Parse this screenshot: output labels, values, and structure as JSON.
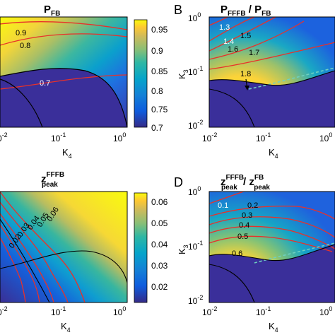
{
  "figure": {
    "colormap": "parula",
    "colors": {
      "background": "#ffffff",
      "axis": "#000000",
      "contour": "#e8312a",
      "boundary": "#000000",
      "dashed_boundary": "#6fd0c0",
      "label_highlight": "#ffffff"
    }
  },
  "chart_data": [
    {
      "panel": "A",
      "type": "heatmap",
      "panel_label": "",
      "title_main": "P",
      "title_sub": "FB",
      "title_sep": "",
      "title2_main": "",
      "title2_sub": "",
      "title2_sup": "",
      "xlabel_main": "K",
      "xlabel_sub": "4",
      "ylabel_main": "",
      "ylabel_sub": "",
      "x_ticks": [
        "10-2",
        "10-1",
        "100"
      ],
      "y_ticks": [],
      "x_log": true,
      "y_log": true,
      "colorbar_ticks": [
        "0.95",
        "0.9",
        "0.85",
        "0.8",
        "0.75",
        "0.7"
      ],
      "colorbar_range": [
        0.7,
        0.97
      ],
      "contour_labels": [
        "0.9",
        "0.8",
        "0.7"
      ],
      "legend": "none",
      "grid": false
    },
    {
      "panel": "B",
      "type": "heatmap",
      "panel_label": "B",
      "title_main": "P",
      "title_sub": "FFFB",
      "title_sep": "/",
      "title2_main": "P",
      "title2_sub": "FB",
      "title2_sup": "",
      "xlabel_main": "K",
      "xlabel_sub": "4",
      "ylabel_main": "K",
      "ylabel_sub": "3",
      "x_ticks": [
        "10-2",
        "10-1",
        "100"
      ],
      "y_ticks": [
        "100",
        "10-1",
        "10-2"
      ],
      "x_log": true,
      "y_log": true,
      "contour_labels": [
        "1.3",
        "1.4",
        "1.5",
        "1.6",
        "1.7",
        "1.8"
      ],
      "legend": "none",
      "grid": false
    },
    {
      "panel": "C",
      "type": "heatmap",
      "panel_label": "",
      "title_main": "z",
      "title_sub": "peak",
      "title_sup": "FFFB",
      "title_sep": "",
      "title2_main": "",
      "title2_sub": "",
      "title2_sup": "",
      "xlabel_main": "K",
      "xlabel_sub": "4",
      "ylabel_main": "",
      "ylabel_sub": "",
      "x_ticks": [
        "10-2",
        "10-1",
        "100"
      ],
      "y_ticks": [],
      "x_log": true,
      "y_log": true,
      "colorbar_ticks": [
        "0.06",
        "0.05",
        "0.04",
        "0.03",
        "0.02"
      ],
      "colorbar_range": [
        0.012,
        0.064
      ],
      "contour_labels": [
        "0.06",
        "0.05",
        "0.04",
        "0.03",
        "0.02"
      ],
      "legend": "none",
      "grid": false
    },
    {
      "panel": "D",
      "type": "heatmap",
      "panel_label": "D",
      "title_main": "z",
      "title_sub": "peak",
      "title_sup": "FFFB",
      "title_sep": "/",
      "title2_main": "z",
      "title2_sub": "peak",
      "title2_sup": "FB",
      "xlabel_main": "K",
      "xlabel_sub": "4",
      "ylabel_main": "K",
      "ylabel_sub": "3",
      "x_ticks": [
        "10-2",
        "10-1",
        "100"
      ],
      "y_ticks": [
        "100",
        "10-1",
        "10-2"
      ],
      "x_log": true,
      "y_log": true,
      "contour_labels": [
        "0.1",
        "0.2",
        "0.3",
        "0.4",
        "0.5",
        "0.6"
      ],
      "legend": "none",
      "grid": false
    }
  ]
}
